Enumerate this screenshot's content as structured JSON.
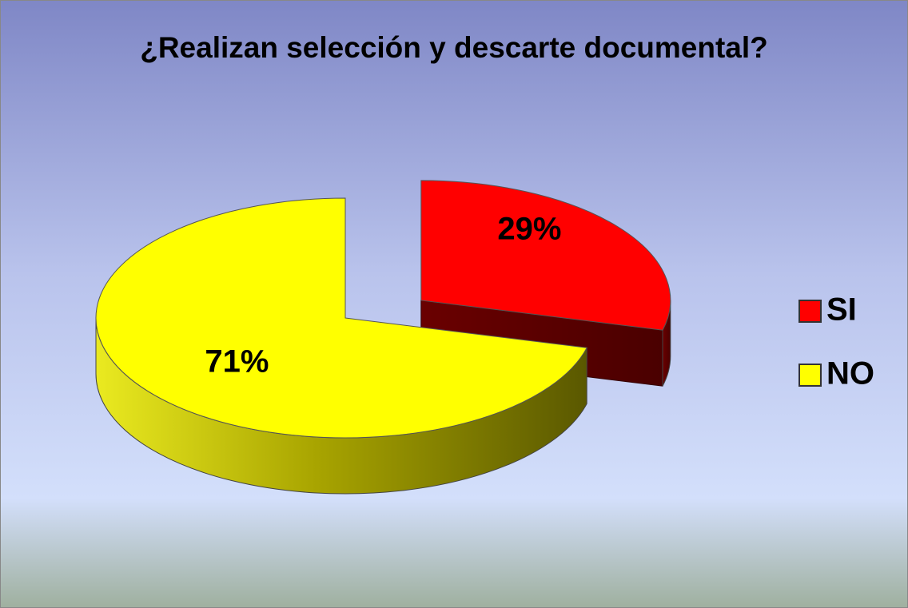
{
  "chart_data": {
    "type": "pie",
    "title": "¿Realizan selección y descarte documental?",
    "categories": [
      "SI",
      "NO"
    ],
    "values": [
      29,
      71
    ],
    "value_labels": [
      "29%",
      "71%"
    ],
    "colors": [
      "#ff0000",
      "#ffff00"
    ],
    "legend": "right"
  }
}
